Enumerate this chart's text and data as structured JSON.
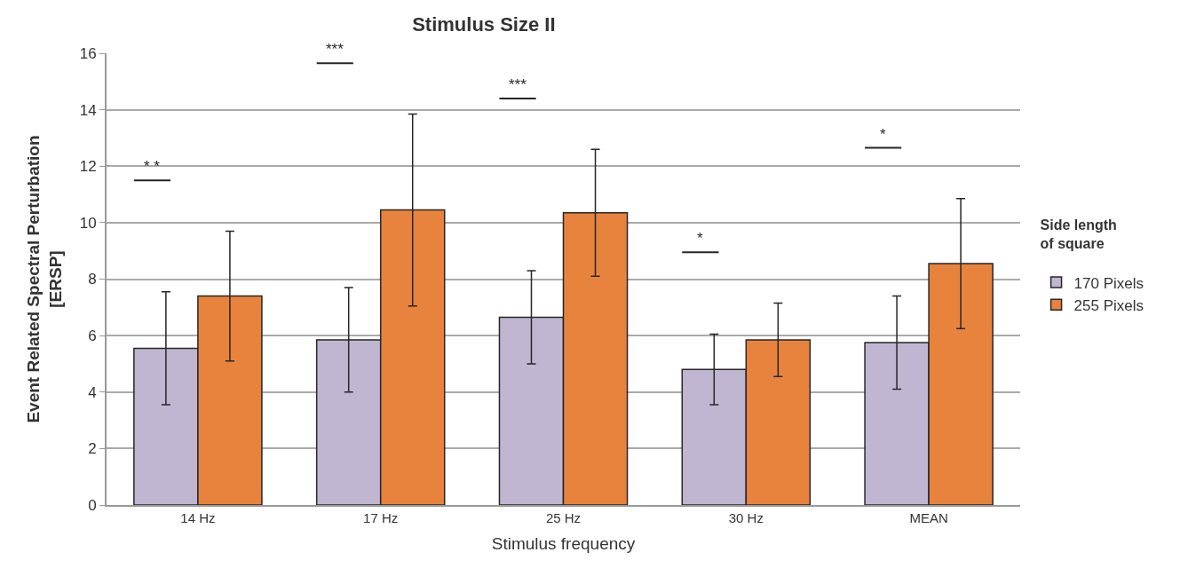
{
  "chart_data": {
    "type": "bar",
    "title": "Stimulus Size II",
    "xlabel": "Stimulus frequency",
    "ylabel": "Event Related Spectral Perturbation\n[ERSP]",
    "legend_title": "Side length\nof square",
    "categories": [
      "14 Hz",
      "17 Hz",
      "25 Hz",
      "30 Hz",
      "MEAN"
    ],
    "series": [
      {
        "name": "170 Pixels",
        "color": "#c0b6d2",
        "values": [
          5.55,
          5.85,
          6.65,
          4.8,
          5.75
        ],
        "errors": [
          2.0,
          1.85,
          1.65,
          1.25,
          1.65
        ]
      },
      {
        "name": "255 Pixels",
        "color": "#e8833e",
        "values": [
          7.4,
          10.45,
          10.35,
          5.85,
          8.55
        ],
        "errors": [
          2.3,
          3.4,
          2.25,
          1.3,
          2.3
        ]
      }
    ],
    "annotations": [
      "* *",
      "***",
      "***",
      "*",
      "*"
    ],
    "ylim": [
      0,
      16
    ],
    "yticks": [
      0,
      2,
      4,
      6,
      8,
      10,
      12,
      14,
      16
    ],
    "grid": "y",
    "legend": "right"
  }
}
